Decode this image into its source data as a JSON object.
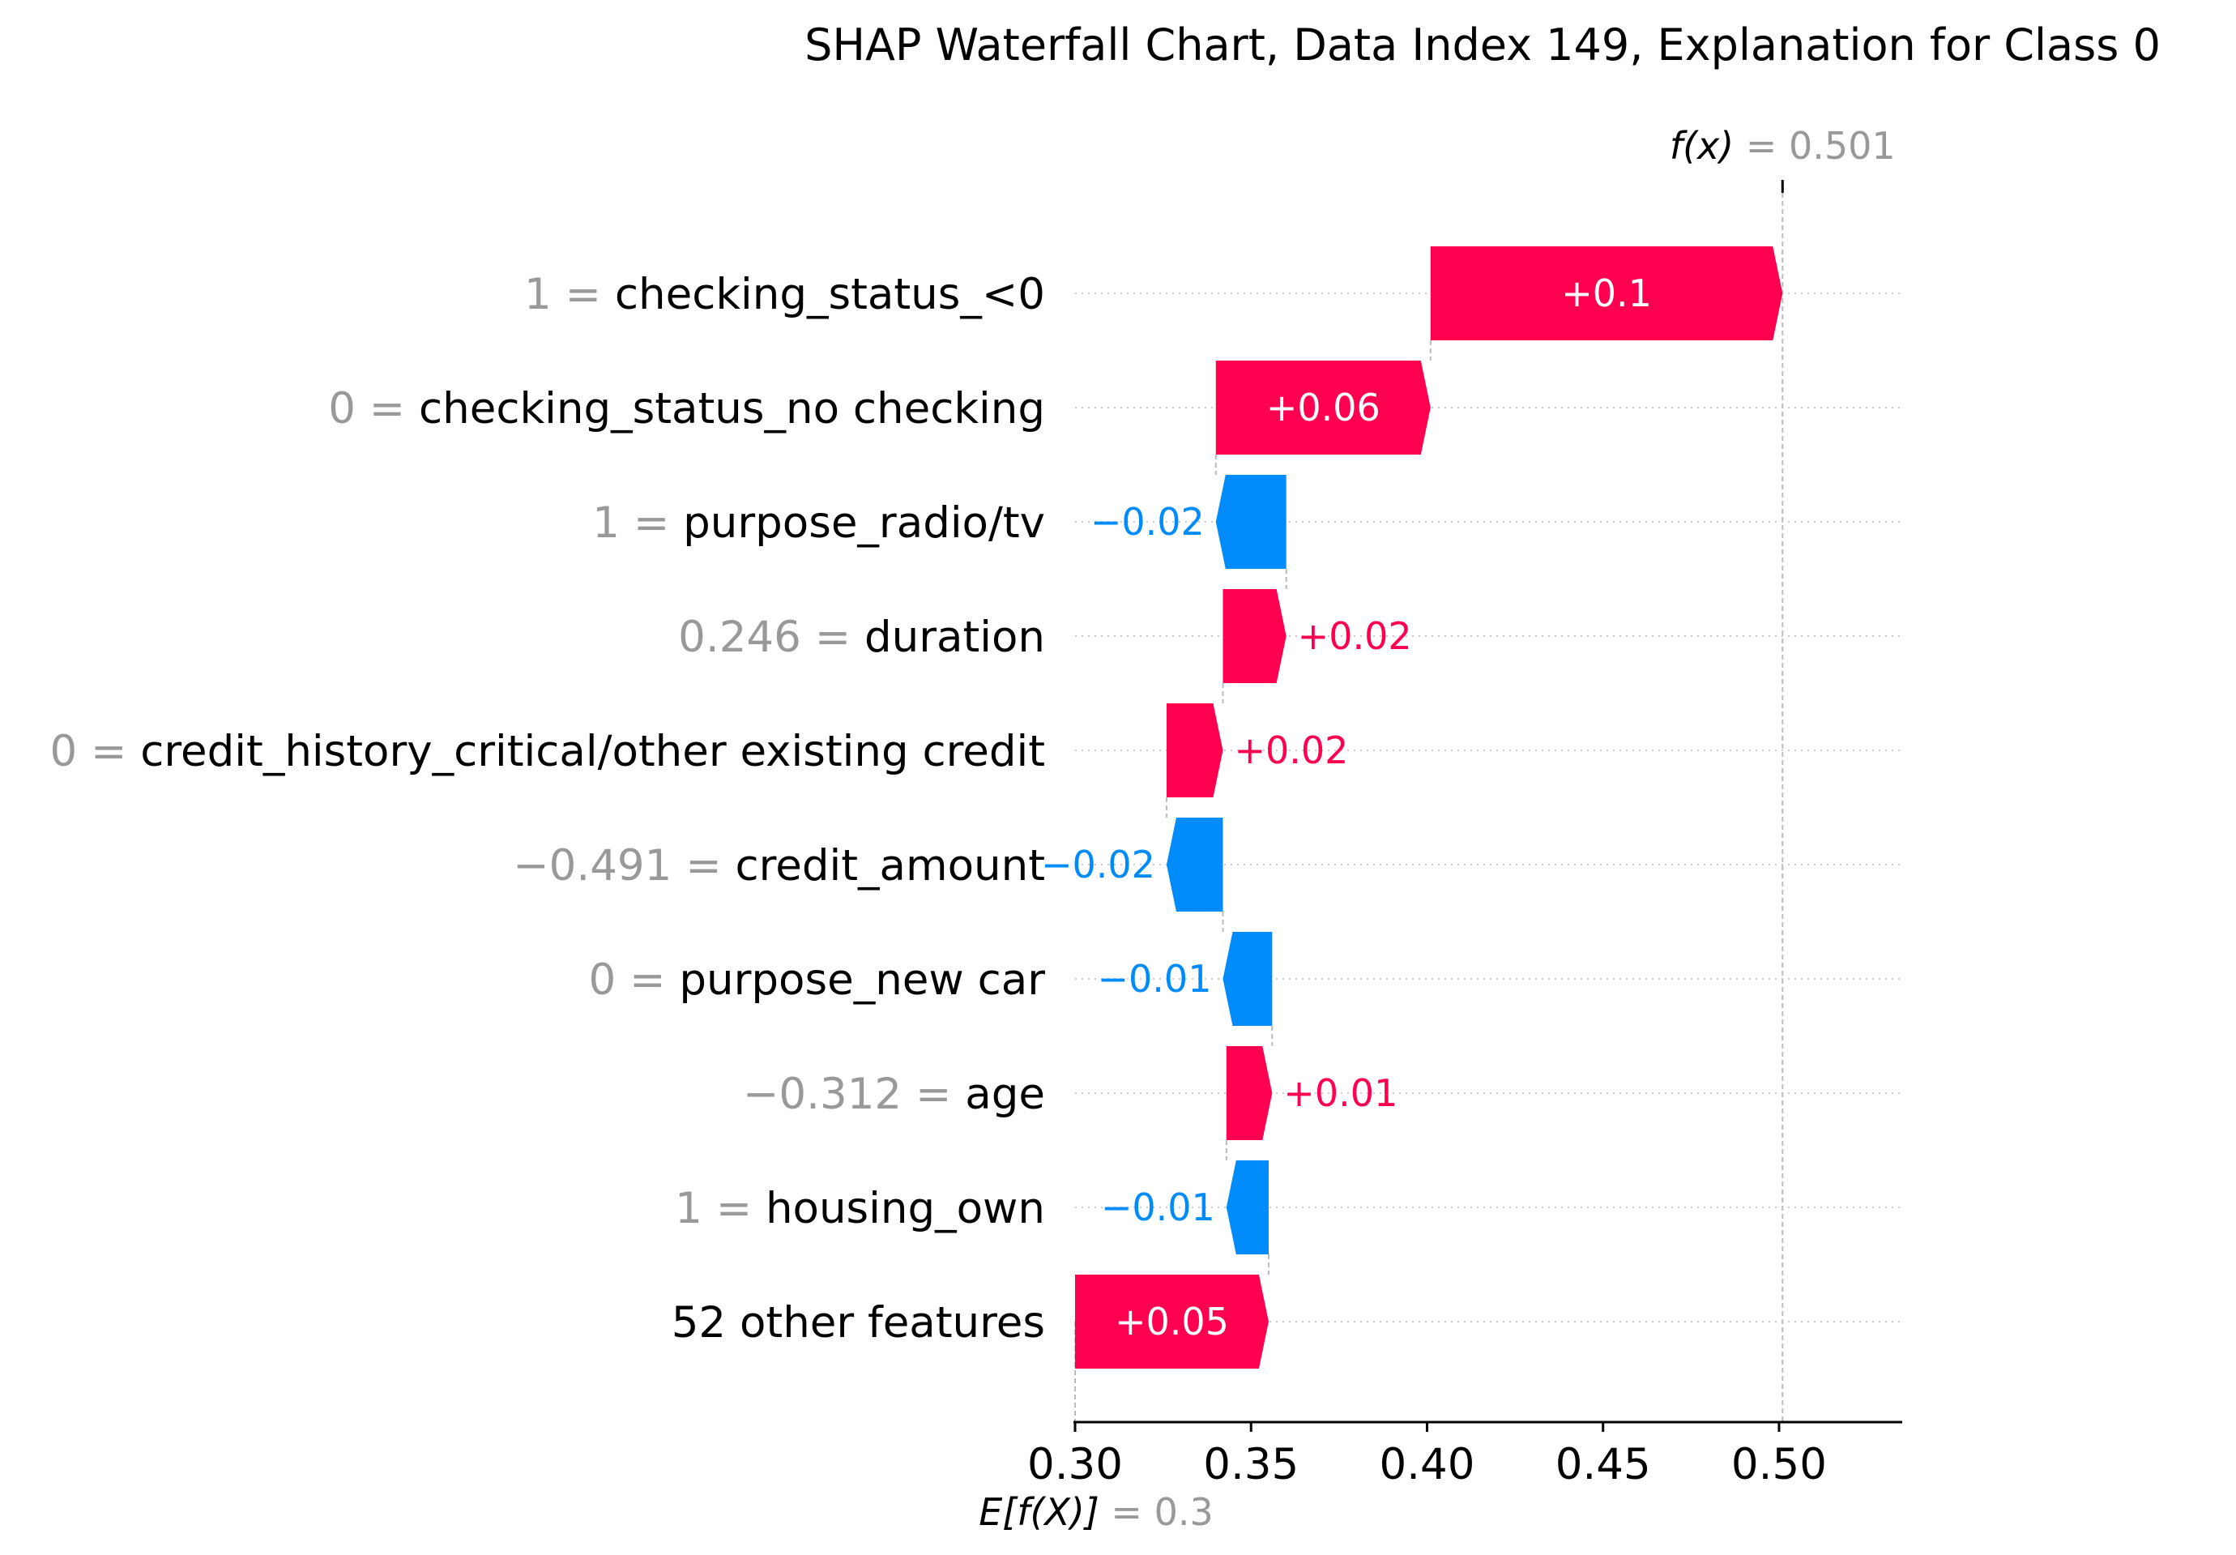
{
  "chart_data": {
    "type": "waterfall",
    "title": "SHAP Waterfall Chart, Data Index 149, Explanation for Class 0",
    "base_value": 0.3,
    "final_value": 0.501,
    "fx_name": "f(x)",
    "fx_value": "0.501",
    "ex_name": "E[f(X)]",
    "ex_value": "0.3",
    "xlim": [
      0.3,
      0.535
    ],
    "xticks": [
      0.3,
      0.35,
      0.4,
      0.45,
      0.5
    ],
    "xtick_labels": [
      "0.30",
      "0.35",
      "0.40",
      "0.45",
      "0.50"
    ],
    "grid": "horizontal dotted",
    "colors": {
      "positive": "#ff0051",
      "negative": "#008bfb"
    },
    "features": [
      {
        "value_text": "1",
        "name": "checking_status_<0",
        "start": 0.401,
        "end": 0.501,
        "label": "+0.1"
      },
      {
        "value_text": "0",
        "name": "checking_status_no checking",
        "start": 0.34,
        "end": 0.401,
        "label": "+0.06"
      },
      {
        "value_text": "1",
        "name": "purpose_radio/tv",
        "start": 0.36,
        "end": 0.34,
        "label": "−0.02"
      },
      {
        "value_text": "0.246",
        "name": "duration",
        "start": 0.342,
        "end": 0.36,
        "label": "+0.02"
      },
      {
        "value_text": "0",
        "name": "credit_history_critical/other existing credit",
        "start": 0.326,
        "end": 0.342,
        "label": "+0.02"
      },
      {
        "value_text": "−0.491",
        "name": "credit_amount",
        "start": 0.342,
        "end": 0.326,
        "label": "−0.02"
      },
      {
        "value_text": "0",
        "name": "purpose_new car",
        "start": 0.356,
        "end": 0.342,
        "label": "−0.01"
      },
      {
        "value_text": "−0.312",
        "name": "age",
        "start": 0.343,
        "end": 0.356,
        "label": "+0.01"
      },
      {
        "value_text": "1",
        "name": "housing_own",
        "start": 0.355,
        "end": 0.343,
        "label": "−0.01"
      },
      {
        "value_text": "",
        "name": "52 other features",
        "start": 0.3,
        "end": 0.355,
        "label": "+0.05"
      }
    ]
  }
}
